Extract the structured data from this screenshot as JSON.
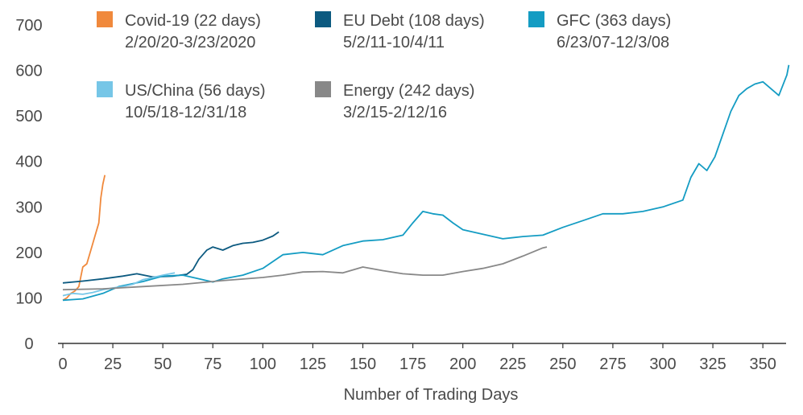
{
  "chart_data": {
    "type": "line",
    "title": "",
    "xlabel": "Number of Trading Days",
    "ylabel": "",
    "xlim": [
      0,
      360
    ],
    "ylim": [
      0,
      700
    ],
    "x_ticks": [
      0,
      25,
      50,
      75,
      100,
      125,
      150,
      175,
      200,
      225,
      250,
      275,
      300,
      325,
      350
    ],
    "y_ticks": [
      0,
      100,
      200,
      300,
      400,
      500,
      600,
      700
    ],
    "grid": false,
    "legend_position": "top-left",
    "series": [
      {
        "name": "Covid-19 (22 days)",
        "period": "2/20/20-3/23/2020",
        "color": "#F0893C",
        "points": [
          [
            0,
            95
          ],
          [
            2,
            100
          ],
          [
            4,
            110
          ],
          [
            6,
            115
          ],
          [
            8,
            125
          ],
          [
            10,
            168
          ],
          [
            12,
            175
          ],
          [
            14,
            205
          ],
          [
            16,
            235
          ],
          [
            18,
            265
          ],
          [
            19,
            320
          ],
          [
            20,
            350
          ],
          [
            21,
            370
          ]
        ]
      },
      {
        "name": "EU Debt (108 days)",
        "period": "5/2/11-10/4/11",
        "color": "#0C5A80",
        "points": [
          [
            0,
            133
          ],
          [
            10,
            137
          ],
          [
            20,
            142
          ],
          [
            30,
            148
          ],
          [
            37,
            153
          ],
          [
            45,
            146
          ],
          [
            55,
            148
          ],
          [
            62,
            152
          ],
          [
            65,
            162
          ],
          [
            68,
            185
          ],
          [
            72,
            205
          ],
          [
            75,
            212
          ],
          [
            80,
            205
          ],
          [
            85,
            215
          ],
          [
            90,
            220
          ],
          [
            95,
            222
          ],
          [
            100,
            227
          ],
          [
            105,
            236
          ],
          [
            108,
            245
          ]
        ]
      },
      {
        "name": "GFC (363 days)",
        "period": "6/23/07-12/3/08",
        "color": "#149CC3",
        "points": [
          [
            0,
            95
          ],
          [
            10,
            98
          ],
          [
            20,
            110
          ],
          [
            28,
            125
          ],
          [
            40,
            136
          ],
          [
            50,
            148
          ],
          [
            60,
            150
          ],
          [
            70,
            140
          ],
          [
            75,
            135
          ],
          [
            80,
            142
          ],
          [
            90,
            150
          ],
          [
            100,
            165
          ],
          [
            110,
            195
          ],
          [
            120,
            200
          ],
          [
            130,
            195
          ],
          [
            140,
            215
          ],
          [
            150,
            225
          ],
          [
            160,
            228
          ],
          [
            170,
            238
          ],
          [
            175,
            265
          ],
          [
            180,
            290
          ],
          [
            185,
            285
          ],
          [
            190,
            282
          ],
          [
            195,
            265
          ],
          [
            200,
            250
          ],
          [
            210,
            240
          ],
          [
            220,
            230
          ],
          [
            230,
            235
          ],
          [
            240,
            238
          ],
          [
            250,
            255
          ],
          [
            260,
            270
          ],
          [
            270,
            285
          ],
          [
            280,
            285
          ],
          [
            290,
            290
          ],
          [
            300,
            300
          ],
          [
            310,
            315
          ],
          [
            314,
            365
          ],
          [
            318,
            395
          ],
          [
            322,
            380
          ],
          [
            326,
            410
          ],
          [
            330,
            460
          ],
          [
            334,
            510
          ],
          [
            338,
            545
          ],
          [
            342,
            560
          ],
          [
            346,
            570
          ],
          [
            350,
            575
          ],
          [
            354,
            560
          ],
          [
            358,
            545
          ],
          [
            362,
            590
          ],
          [
            363,
            612
          ]
        ]
      },
      {
        "name": "US/China (56 days)",
        "period": "10/5/18-12/31/18",
        "color": "#76C6E7",
        "points": [
          [
            0,
            105
          ],
          [
            5,
            110
          ],
          [
            10,
            108
          ],
          [
            15,
            112
          ],
          [
            20,
            118
          ],
          [
            25,
            122
          ],
          [
            30,
            125
          ],
          [
            35,
            130
          ],
          [
            40,
            140
          ],
          [
            45,
            145
          ],
          [
            50,
            150
          ],
          [
            56,
            155
          ]
        ]
      },
      {
        "name": "Energy (242 days)",
        "period": "3/2/15-2/12/16",
        "color": "#888888",
        "points": [
          [
            0,
            118
          ],
          [
            20,
            120
          ],
          [
            40,
            125
          ],
          [
            60,
            130
          ],
          [
            80,
            138
          ],
          [
            100,
            145
          ],
          [
            110,
            150
          ],
          [
            120,
            157
          ],
          [
            130,
            158
          ],
          [
            140,
            155
          ],
          [
            150,
            168
          ],
          [
            160,
            160
          ],
          [
            170,
            153
          ],
          [
            180,
            150
          ],
          [
            190,
            150
          ],
          [
            200,
            158
          ],
          [
            210,
            165
          ],
          [
            220,
            175
          ],
          [
            230,
            192
          ],
          [
            240,
            210
          ],
          [
            242,
            212
          ]
        ]
      }
    ]
  }
}
